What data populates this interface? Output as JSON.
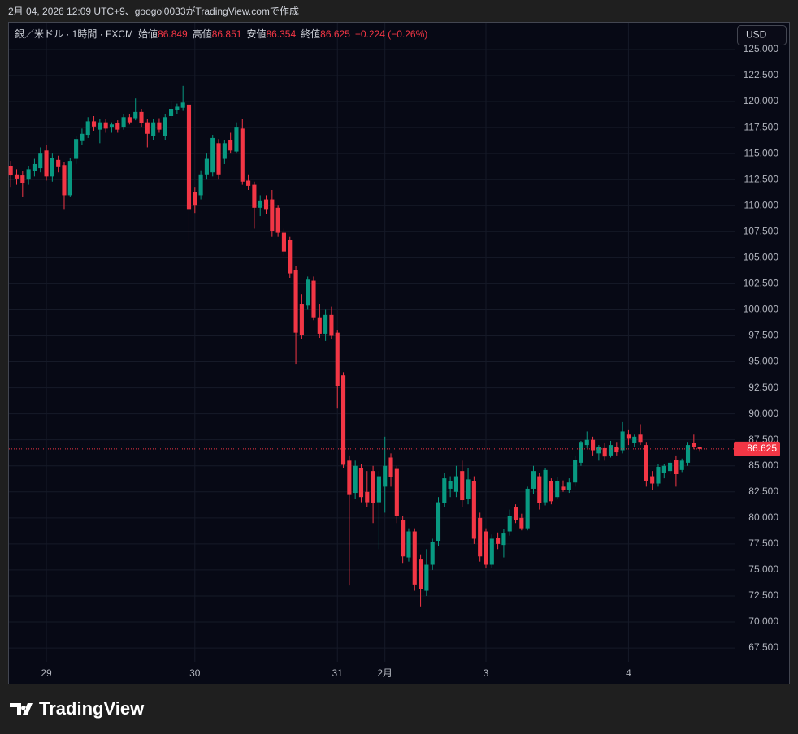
{
  "caption": "2月 04, 2026 12:09 UTC+9、googol0033がTradingView.comで作成",
  "brand": "TradingView",
  "chart_data": {
    "type": "candlestick",
    "title": "銀／米ドル · 1時間 · FXCM",
    "currency": "USD",
    "ohlc_labels": [
      "始値",
      "高値",
      "安値",
      "終値"
    ],
    "change": "−0.224 (−0.26%)",
    "up_color": "#089981",
    "down_color": "#f23645",
    "grid": true,
    "xlim": [
      -0.3,
      122
    ],
    "xticks": [
      {
        "value": 6,
        "label": "29"
      },
      {
        "value": 31,
        "label": "30"
      },
      {
        "value": 55,
        "label": "31"
      },
      {
        "value": 63,
        "label": "2月"
      },
      {
        "value": 80,
        "label": "3"
      },
      {
        "value": 104,
        "label": "4"
      }
    ],
    "ylim": [
      66.18,
      127.57
    ],
    "yticks": [
      {
        "value": 67.5,
        "label": "67.500"
      },
      {
        "value": 70,
        "label": "70.000"
      },
      {
        "value": 72.5,
        "label": "72.500"
      },
      {
        "value": 75,
        "label": "75.000"
      },
      {
        "value": 77.5,
        "label": "77.500"
      },
      {
        "value": 80,
        "label": "80.000"
      },
      {
        "value": 82.5,
        "label": "82.500"
      },
      {
        "value": 85,
        "label": "85.000"
      },
      {
        "value": 87.5,
        "label": "87.500"
      },
      {
        "value": 90,
        "label": "90.000"
      },
      {
        "value": 92.5,
        "label": "92.500"
      },
      {
        "value": 95,
        "label": "95.000"
      },
      {
        "value": 97.5,
        "label": "97.500"
      },
      {
        "value": 100,
        "label": "100.000"
      },
      {
        "value": 102.5,
        "label": "102.500"
      },
      {
        "value": 105,
        "label": "105.000"
      },
      {
        "value": 107.5,
        "label": "107.500"
      },
      {
        "value": 110,
        "label": "110.000"
      },
      {
        "value": 112.5,
        "label": "112.500"
      },
      {
        "value": 115,
        "label": "115.000"
      },
      {
        "value": 117.5,
        "label": "117.500"
      },
      {
        "value": 120,
        "label": "120.000"
      },
      {
        "value": 122.5,
        "label": "122.500"
      },
      {
        "value": 125,
        "label": "125.000"
      }
    ],
    "open": [
      113.8,
      113.0,
      112.9,
      112.5,
      113.3,
      113.6,
      115.3,
      112.8,
      114.4,
      113.9,
      111.0,
      114.5,
      116.2,
      116.8,
      118.1,
      117.3,
      118.0,
      117.5,
      117.9,
      117.5,
      118.5,
      118.4,
      119.0,
      118.0,
      116.7,
      118.0,
      116.7,
      118.6,
      119.2,
      119.4,
      119.7,
      111.3,
      111.0,
      113.0,
      113.2,
      116.0,
      114.5,
      116.3,
      115.2,
      117.4,
      112.4,
      112.0,
      109.8,
      110.6,
      110.6,
      109.8,
      107.4,
      106.7,
      103.8,
      100.5,
      100.4,
      102.8,
      99.2,
      97.7,
      99.5,
      97.8,
      93.7,
      85.5,
      82.4,
      84.8,
      82.5,
      84.5,
      81.5,
      83.0,
      85.8,
      84.7,
      79.8,
      76.2,
      78.7,
      76.0,
      73.0,
      75.5,
      77.8,
      81.4,
      82.8,
      82.5,
      84.5,
      81.8,
      83.5,
      80.0,
      78.7,
      75.5,
      78.1,
      77.4,
      78.7,
      81.0,
      80.0,
      79.0,
      82.8,
      84.0,
      81.5,
      83.5,
      82.0,
      83.0,
      82.7,
      83.4,
      85.3,
      87.0,
      87.5,
      86.2,
      86.7,
      86.0,
      86.8,
      86.5,
      88.0,
      87.2,
      88.0,
      87.0,
      84.0,
      83.3,
      84.3,
      84.5,
      85.6,
      84.6,
      85.3,
      87.2,
      86.849
    ],
    "high": [
      114.3,
      113.5,
      113.3,
      113.8,
      114.5,
      115.6,
      115.8,
      115.0,
      114.8,
      114.2,
      114.6,
      116.7,
      117.4,
      118.5,
      118.6,
      118.3,
      118.3,
      118.0,
      118.2,
      118.8,
      118.8,
      120.3,
      119.3,
      118.3,
      118.3,
      118.4,
      118.8,
      120.0,
      119.8,
      121.5,
      120.0,
      111.8,
      113.4,
      115.0,
      116.8,
      116.4,
      116.3,
      117.0,
      118.0,
      118.3,
      113.0,
      112.3,
      111.0,
      111.0,
      111.5,
      110.0,
      107.8,
      107.0,
      104.2,
      101.5,
      103.2,
      103.2,
      100.5,
      100.0,
      100.3,
      98.0,
      94.0,
      86.0,
      85.5,
      85.2,
      84.5,
      85.0,
      84.5,
      87.8,
      86.2,
      85.0,
      80.2,
      79.0,
      79.0,
      76.5,
      77.0,
      78.0,
      82.0,
      84.3,
      84.0,
      85.0,
      85.5,
      84.8,
      84.0,
      80.5,
      79.0,
      78.4,
      78.6,
      78.9,
      80.8,
      81.3,
      80.4,
      83.0,
      85.0,
      84.3,
      84.8,
      83.8,
      83.9,
      83.6,
      83.8,
      86.0,
      87.4,
      88.3,
      87.8,
      87.0,
      87.2,
      87.4,
      87.3,
      89.2,
      88.5,
      88.0,
      89.0,
      87.3,
      84.5,
      85.2,
      85.2,
      85.6,
      86.0,
      85.7,
      87.3,
      88.0,
      86.851
    ],
    "low": [
      111.8,
      112.0,
      110.8,
      112.0,
      112.8,
      113.2,
      112.4,
      112.3,
      113.2,
      109.6,
      110.8,
      114.0,
      115.8,
      116.5,
      117.2,
      116.0,
      117.0,
      117.0,
      117.0,
      117.3,
      117.8,
      118.2,
      117.5,
      115.6,
      116.3,
      117.0,
      116.3,
      118.3,
      118.8,
      119.1,
      106.6,
      109.3,
      110.6,
      112.5,
      112.8,
      112.5,
      114.0,
      115.0,
      115.0,
      112.0,
      111.5,
      107.8,
      109.0,
      109.2,
      107.0,
      107.0,
      105.2,
      103.0,
      94.8,
      97.2,
      100.0,
      99.0,
      97.3,
      97.0,
      97.2,
      90.5,
      84.8,
      73.5,
      81.8,
      81.5,
      81.0,
      79.5,
      77.0,
      80.5,
      83.0,
      79.5,
      75.6,
      75.8,
      73.0,
      71.5,
      72.5,
      75.0,
      77.3,
      81.0,
      82.0,
      82.0,
      81.0,
      81.3,
      77.5,
      75.8,
      75.2,
      75.2,
      77.0,
      76.2,
      78.3,
      79.5,
      78.8,
      78.8,
      82.3,
      80.8,
      81.2,
      81.3,
      81.8,
      82.5,
      82.4,
      83.0,
      85.0,
      86.7,
      86.0,
      85.5,
      85.5,
      85.8,
      86.0,
      86.2,
      87.0,
      86.8,
      87.0,
      83.0,
      82.7,
      83.0,
      83.8,
      84.2,
      83.0,
      84.4,
      85.0,
      86.6,
      86.354
    ],
    "close": [
      112.9,
      112.6,
      112.2,
      113.5,
      114.0,
      115.0,
      112.8,
      114.6,
      113.7,
      111.0,
      114.3,
      116.4,
      116.9,
      118.1,
      117.6,
      118.0,
      117.4,
      117.8,
      117.3,
      118.5,
      118.0,
      119.0,
      117.9,
      116.9,
      118.0,
      117.3,
      118.5,
      119.3,
      119.5,
      119.9,
      109.6,
      110.0,
      113.0,
      114.5,
      116.5,
      113.0,
      116.0,
      115.3,
      117.5,
      112.3,
      111.9,
      109.8,
      110.5,
      109.6,
      107.6,
      107.4,
      105.6,
      103.5,
      97.8,
      97.6,
      102.9,
      99.2,
      97.7,
      99.5,
      97.5,
      92.7,
      85.1,
      82.2,
      85.0,
      82.0,
      81.5,
      81.4,
      84.0,
      85.0,
      83.9,
      80.2,
      76.3,
      78.7,
      73.6,
      73.2,
      75.5,
      77.7,
      81.5,
      83.8,
      83.5,
      84.0,
      81.7,
      83.7,
      78.0,
      76.3,
      75.5,
      78.0,
      77.5,
      78.5,
      80.2,
      79.8,
      79.0,
      82.8,
      84.5,
      81.4,
      84.6,
      81.6,
      83.5,
      82.7,
      83.4,
      85.6,
      87.3,
      87.5,
      86.5,
      86.8,
      85.9,
      87.0,
      86.3,
      88.3,
      87.6,
      87.8,
      87.3,
      83.5,
      83.3,
      84.9,
      85.0,
      85.3,
      84.2,
      85.5,
      87.0,
      86.8,
      86.625
    ]
  }
}
